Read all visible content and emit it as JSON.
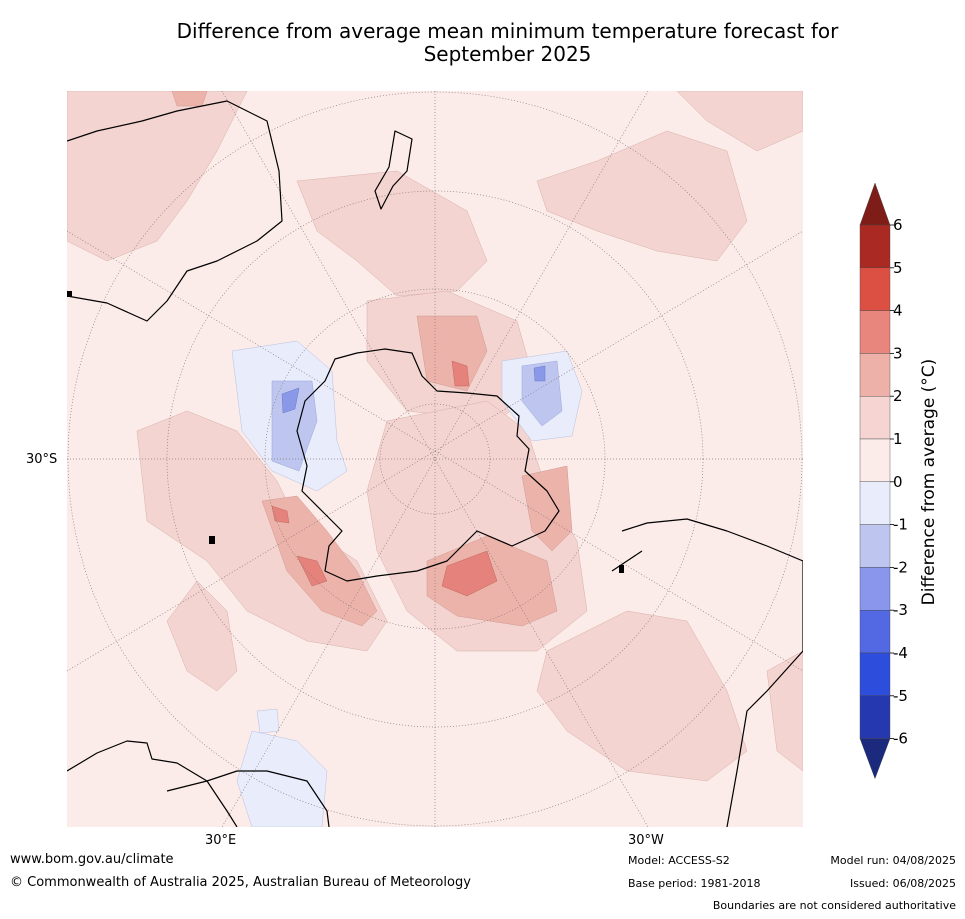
{
  "title": {
    "line1": "Difference from average mean minimum temperature forecast for",
    "line2": "September 2025"
  },
  "map": {
    "lat_label": "30°S",
    "lon_labels": [
      "30°E",
      "30°W"
    ],
    "projection": "south-polar-stereographic",
    "colors": {
      "ocean_0_1": "#fbebe9",
      "anom_1_2": "#f3d4d0",
      "anom_2_3": "#ecb3aa",
      "anom_3_4": "#e4827b",
      "anom_neg_0_1": "#e8ecfb",
      "anom_neg_1_2": "#bec6f0",
      "anom_neg_2_3": "#8a98e8",
      "coast": "#000000",
      "grid": "#8a7a7a"
    }
  },
  "colorbar": {
    "label": "Difference from average (°C)",
    "ticks": [
      "6",
      "5",
      "4",
      "3",
      "2",
      "1",
      "0",
      "-1",
      "-2",
      "-3",
      "-4",
      "-5",
      "-6"
    ],
    "colors": [
      "#7e1d18",
      "#aa2a23",
      "#db5043",
      "#e8867d",
      "#eeb1a9",
      "#f5d4d1",
      "#fbebe9",
      "#e8ecfb",
      "#bec6f0",
      "#8996ec",
      "#5369e3",
      "#2d4ddc",
      "#2638b0",
      "#1b2a7c"
    ]
  },
  "footer": {
    "website": "www.bom.gov.au/climate",
    "copyright": "© Commonwealth of Australia 2025, Australian Bureau of Meteorology",
    "model": "Model: ACCESS-S2",
    "base_period": "Base period: 1981-2018",
    "model_run": "Model run: 04/08/2025",
    "issued": "Issued: 06/08/2025",
    "disclaimer": "Boundaries are not considered authoritative"
  }
}
